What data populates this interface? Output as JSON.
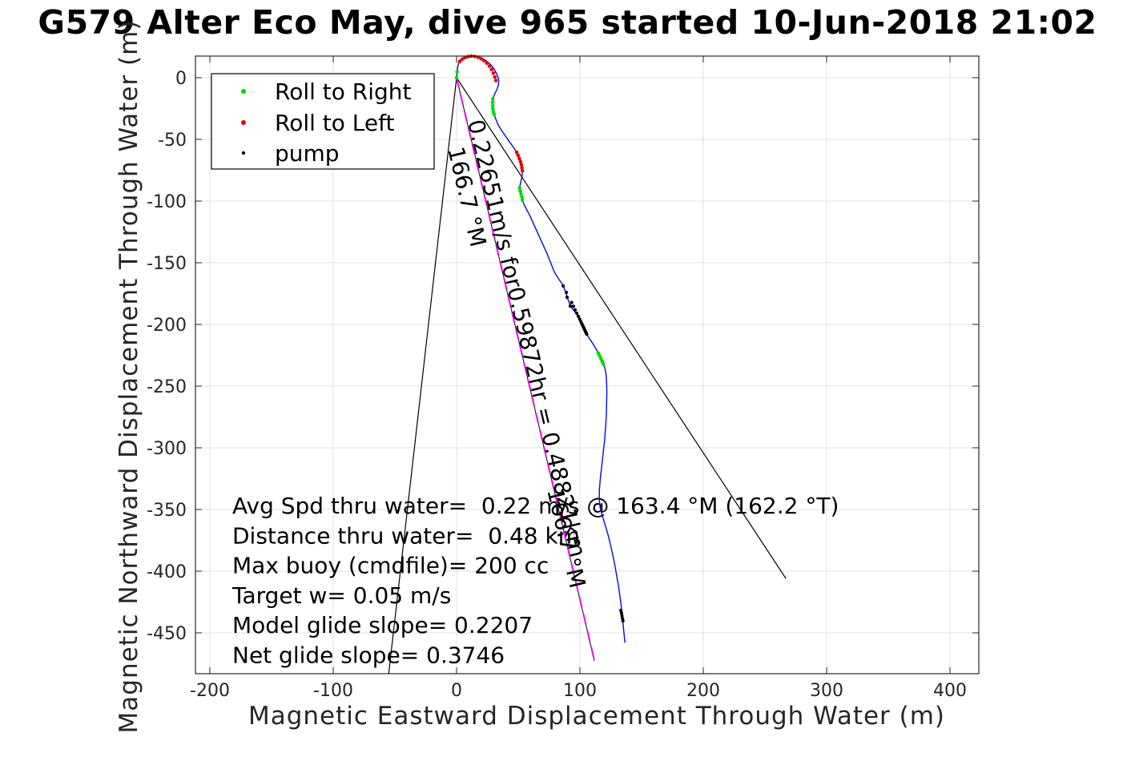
{
  "chart_data": {
    "type": "line",
    "title": "G579 Alter Eco May, dive 965 started 10-Jun-2018 21:02",
    "xlabel": "Magnetic Eastward Displacement Through Water (m)",
    "ylabel": "Magnetic Northward Displacement Through Water (m)",
    "xlim": [
      -212,
      423
    ],
    "ylim": [
      -483,
      17
    ],
    "x_ticks": [
      -200,
      -100,
      0,
      100,
      200,
      300,
      400
    ],
    "y_ticks": [
      0,
      -50,
      -100,
      -150,
      -200,
      -250,
      -300,
      -350,
      -400,
      -450
    ],
    "grid": true,
    "grid_color": "#e0e0e0",
    "axis_color": "#262626",
    "legend": {
      "position": "top-left",
      "entries": [
        {
          "label": "Roll to Right",
          "color": "#00d900",
          "marker": "dot"
        },
        {
          "label": "Roll to Left",
          "color": "#e60000",
          "marker": "dot"
        },
        {
          "label": "pump",
          "color": "#000000",
          "marker": "dot"
        }
      ]
    },
    "series": [
      {
        "name": "track-through-water",
        "type": "line",
        "color": "#0008f0",
        "width": 1.4,
        "points": [
          [
            0,
            0
          ],
          [
            0.4,
            4.5
          ],
          [
            1,
            9
          ],
          [
            2,
            12.8
          ],
          [
            3.8,
            15.2
          ],
          [
            6.3,
            16.7
          ],
          [
            9,
            17.4
          ],
          [
            12,
            17.7
          ],
          [
            15,
            17.5
          ],
          [
            18,
            16.8
          ],
          [
            21,
            15.6
          ],
          [
            23.8,
            13.9
          ],
          [
            26.3,
            11.8
          ],
          [
            28.7,
            9.4
          ],
          [
            30.7,
            6.6
          ],
          [
            32.3,
            3.6
          ],
          [
            33.6,
            0.5
          ],
          [
            34.2,
            -2.6
          ],
          [
            33.9,
            -6
          ],
          [
            32.8,
            -9.5
          ],
          [
            31.2,
            -12.8
          ],
          [
            30,
            -15.5
          ],
          [
            29.4,
            -17.8
          ],
          [
            29.2,
            -20.5
          ],
          [
            29.3,
            -23.3
          ],
          [
            29.6,
            -26.2
          ],
          [
            30.3,
            -29.2
          ],
          [
            31.4,
            -32.5
          ],
          [
            33.5,
            -37.8
          ],
          [
            36.5,
            -42.8
          ],
          [
            40,
            -47.8
          ],
          [
            43.5,
            -52.8
          ],
          [
            46.6,
            -57.2
          ],
          [
            48.8,
            -60.5
          ],
          [
            50.9,
            -65.5
          ],
          [
            52.5,
            -70.5
          ],
          [
            53.3,
            -75.4
          ],
          [
            53.2,
            -79.2
          ],
          [
            52.4,
            -83
          ],
          [
            51.6,
            -86.5
          ],
          [
            51.1,
            -89.4
          ],
          [
            51.7,
            -93
          ],
          [
            52.7,
            -96.5
          ],
          [
            53.4,
            -99
          ],
          [
            54.6,
            -102.6
          ],
          [
            56.6,
            -106.6
          ],
          [
            59.1,
            -111.1
          ],
          [
            63.1,
            -120
          ],
          [
            67.2,
            -129
          ],
          [
            73.5,
            -143
          ],
          [
            79.5,
            -158
          ],
          [
            83,
            -163.5
          ],
          [
            86.4,
            -168.2
          ],
          [
            92.2,
            -185.1
          ],
          [
            98.7,
            -193.4
          ],
          [
            105.5,
            -207.9
          ],
          [
            108.1,
            -212.1
          ],
          [
            110.5,
            -215.6
          ],
          [
            113.1,
            -220
          ],
          [
            114.9,
            -223.2
          ],
          [
            117,
            -227.6
          ],
          [
            118.9,
            -231.9
          ],
          [
            120.4,
            -236.1
          ],
          [
            121.3,
            -241
          ],
          [
            121.7,
            -248
          ],
          [
            121.8,
            -256
          ],
          [
            121.6,
            -265
          ],
          [
            121.4,
            -274
          ],
          [
            120.8,
            -284
          ],
          [
            120,
            -294
          ],
          [
            118.9,
            -304
          ],
          [
            117.8,
            -314
          ],
          [
            116.6,
            -324
          ],
          [
            115.8,
            -334
          ],
          [
            115.7,
            -342
          ],
          [
            116.3,
            -348
          ],
          [
            117.6,
            -353
          ],
          [
            119.1,
            -358.2
          ],
          [
            121,
            -364.2
          ],
          [
            123,
            -371.2
          ],
          [
            124.9,
            -379
          ],
          [
            126.7,
            -387
          ],
          [
            128.3,
            -395
          ],
          [
            129.7,
            -403
          ],
          [
            131.1,
            -411
          ],
          [
            132.3,
            -419
          ],
          [
            133.2,
            -426
          ],
          [
            133.9,
            -432
          ],
          [
            134.5,
            -438
          ],
          [
            135.2,
            -445
          ],
          [
            135.9,
            -452
          ],
          [
            136.4,
            -458
          ]
        ]
      }
    ],
    "reference_lines": [
      {
        "name": "bearing-fan-left",
        "color": "#000000",
        "width": 1.2,
        "dash": "",
        "from": [
          0,
          0
        ],
        "to": [
          -55,
          -483
        ]
      },
      {
        "name": "bearing-fan-right",
        "color": "#000000",
        "width": 1.2,
        "dash": "",
        "from": [
          0,
          0
        ],
        "to": [
          267,
          -406
        ]
      },
      {
        "name": "course-line-black",
        "color": "#000000",
        "width": 1.0,
        "dash": "",
        "from": [
          0,
          0
        ],
        "to": [
          111.8,
          -472.8
        ]
      },
      {
        "name": "course-line-magenta",
        "color": "#f200f2",
        "width": 2.0,
        "dash": "13 8.5",
        "from": [
          0,
          0
        ],
        "to": [
          112,
          -473.5
        ]
      }
    ],
    "marker_series": [
      {
        "name": "roll-to-right",
        "color": "#00d900",
        "radius": 2.3,
        "points": [
          [
            0,
            0
          ],
          [
            0.5,
            4.8
          ],
          [
            29.4,
            -17.3
          ],
          [
            29.2,
            -20
          ],
          [
            29.3,
            -22.7
          ],
          [
            29.5,
            -25.3
          ],
          [
            29.9,
            -27.7
          ],
          [
            30.5,
            -29.9
          ],
          [
            51.1,
            -89.4
          ],
          [
            51.7,
            -91.9
          ],
          [
            52.3,
            -94.3
          ],
          [
            52.9,
            -96.7
          ],
          [
            53.4,
            -99
          ],
          [
            114.8,
            -223.2
          ],
          [
            115.9,
            -225.4
          ],
          [
            117,
            -227.6
          ],
          [
            118,
            -229.8
          ],
          [
            118.9,
            -231.9
          ]
        ]
      },
      {
        "name": "roll-to-left",
        "color": "#e60000",
        "radius": 2.3,
        "points": [
          [
            2.5,
            13.2
          ],
          [
            4.5,
            15
          ],
          [
            6.8,
            16.3
          ],
          [
            9.3,
            17.1
          ],
          [
            11.9,
            17.5
          ],
          [
            14.6,
            17.3
          ],
          [
            17.2,
            16.6
          ],
          [
            19.8,
            15.4
          ],
          [
            22.2,
            13.8
          ],
          [
            24.5,
            11.8
          ],
          [
            26.6,
            9.4
          ],
          [
            28.4,
            6.7
          ],
          [
            29.9,
            3.7
          ],
          [
            31,
            0.6
          ],
          [
            31.9,
            -2.3
          ],
          [
            48.8,
            -60.5
          ],
          [
            49.9,
            -63
          ],
          [
            50.9,
            -65.5
          ],
          [
            51.8,
            -68
          ],
          [
            52.5,
            -70.5
          ],
          [
            53,
            -73
          ],
          [
            53.3,
            -75.4
          ]
        ]
      },
      {
        "name": "pump",
        "color": "#000000",
        "radius": 2.1,
        "points": [
          [
            86.4,
            -168.8
          ],
          [
            89,
            -174
          ],
          [
            89.6,
            -178
          ],
          [
            92.2,
            -185.1
          ],
          [
            93.3,
            -182.2
          ],
          [
            94.8,
            -185.3
          ],
          [
            96.2,
            -188.2
          ],
          [
            97.5,
            -190.9
          ],
          [
            98.7,
            -193.4
          ],
          [
            99.8,
            -195.7
          ],
          [
            100.8,
            -197.8
          ],
          [
            101.7,
            -199.7
          ],
          [
            102.5,
            -201.4
          ],
          [
            103.2,
            -202.9
          ],
          [
            103.9,
            -204.4
          ],
          [
            104.5,
            -205.7
          ],
          [
            105,
            -206.8
          ],
          [
            105.5,
            -207.9
          ],
          [
            133.2,
            -431.8
          ],
          [
            133.7,
            -434
          ],
          [
            134.1,
            -436.2
          ],
          [
            134.5,
            -438.3
          ],
          [
            134.9,
            -440.3
          ]
        ]
      }
    ],
    "annotations": [
      {
        "text": "0.22651m/s for0.59872hr = 0.48821km",
        "at": [
          9.1,
          -35.7
        ],
        "rotation_deg": 76.7,
        "font_px": 28
      },
      {
        "text": "166.7 °M",
        "at": [
          -7.1,
          -57.8
        ],
        "rotation_deg": 76.7,
        "font_px": 28
      },
      {
        "text": "166.7 °M",
        "at": [
          73.4,
          -334.4
        ],
        "rotation_deg": 76.7,
        "font_px": 28
      }
    ],
    "info_lines": [
      "Avg Spd thru water=  0.22 m/s @ 163.4 °M (162.2 °T)",
      "Distance thru water=  0.48 km",
      "Max buoy (cmdfile)= 200 cc",
      "Target w= 0.05 m/s",
      "Model glide slope= 0.2207",
      "Net glide slope= 0.3746"
    ]
  }
}
